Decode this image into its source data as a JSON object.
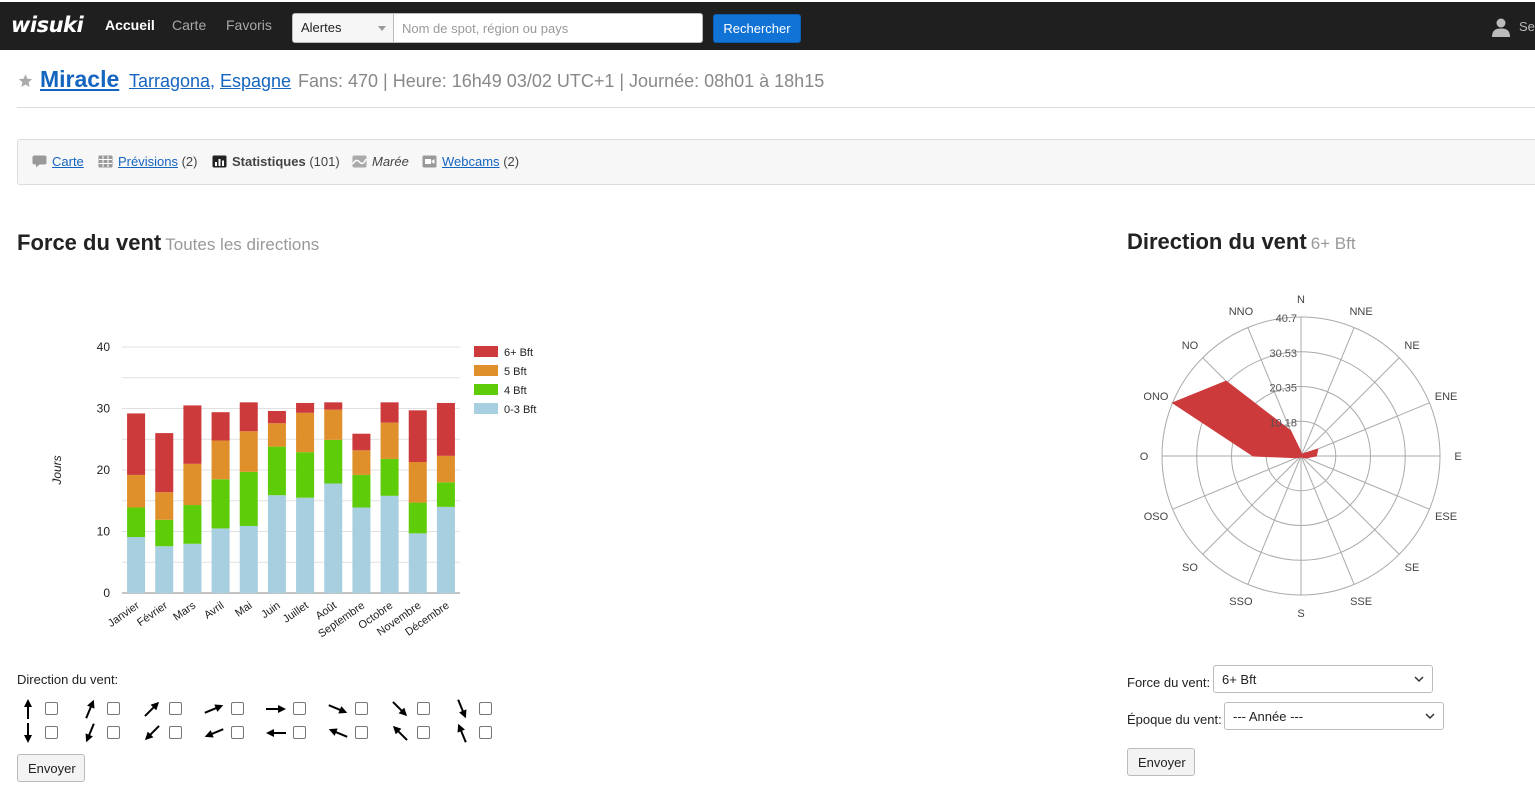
{
  "nav": {
    "logo": "wisuki",
    "items": [
      {
        "label": "Accueil",
        "active": true
      },
      {
        "label": "Carte",
        "active": false
      },
      {
        "label": "Favoris",
        "active": false
      }
    ],
    "alert_select": "Alertes",
    "search_placeholder": "Nom de spot, région ou pays",
    "search_button": "Rechercher",
    "user_label": "Se"
  },
  "spot": {
    "name": "Miracle",
    "region": "Tarragona",
    "separator": ",",
    "country": "Espagne",
    "info": "Fans: 470 | Heure: 16h49 03/02 UTC+1 | Journée: 08h01 à 18h15"
  },
  "tabs": [
    {
      "icon": "map-pin-icon",
      "label": "Carte",
      "count": "",
      "link": true,
      "bold": false
    },
    {
      "icon": "grid-icon",
      "label": "Prévisions",
      "count": "(2)",
      "link": true,
      "bold": false
    },
    {
      "icon": "bar-chart-icon",
      "label": "Statistiques",
      "count": "(101)",
      "link": false,
      "bold": true
    },
    {
      "icon": "wave-icon",
      "label": "Marée",
      "count": "",
      "link": false,
      "bold": false
    },
    {
      "icon": "webcam-icon",
      "label": "Webcams",
      "count": "(2)",
      "link": true,
      "bold": false
    }
  ],
  "force_section": {
    "title": "Force du vent",
    "subtitle": "Toutes les directions"
  },
  "direction_section": {
    "title": "Direction du vent",
    "subtitle": "6+ Bft"
  },
  "chart_data": [
    {
      "type": "bar",
      "stacked": true,
      "categories": [
        "Janvier",
        "Février",
        "Mars",
        "Avril",
        "Mai",
        "Juin",
        "Juillet",
        "Août",
        "Septembre",
        "Octobre",
        "Novembre",
        "Décembre"
      ],
      "ylabel": "Jours",
      "ylim": [
        0,
        40
      ],
      "yticks": [
        0,
        10,
        20,
        30,
        40
      ],
      "grid": true,
      "legend_position": "right",
      "series": [
        {
          "name": "0-3 Bft",
          "color": "#a8cfe0",
          "values": [
            9.1,
            7.6,
            8.0,
            10.5,
            10.9,
            15.9,
            15.5,
            17.8,
            13.9,
            15.8,
            9.7,
            14.0
          ]
        },
        {
          "name": "4 Bft",
          "color": "#5fcc0a",
          "values": [
            4.8,
            4.3,
            6.3,
            8.0,
            8.8,
            7.9,
            7.4,
            7.1,
            5.3,
            6.0,
            5.0,
            4.0
          ]
        },
        {
          "name": "5 Bft",
          "color": "#e0902a",
          "values": [
            5.3,
            4.5,
            6.7,
            6.3,
            6.6,
            3.8,
            6.4,
            4.9,
            4.0,
            5.9,
            6.6,
            4.3
          ]
        },
        {
          "name": "6+ Bft",
          "color": "#cc3a3c",
          "values": [
            10.0,
            9.6,
            9.5,
            4.6,
            4.7,
            2.0,
            1.6,
            1.2,
            2.7,
            3.3,
            8.4,
            8.6
          ]
        }
      ]
    },
    {
      "type": "radar",
      "series_name": "6+ Bft",
      "color": "#cc3a3c",
      "directions": [
        "N",
        "NNE",
        "NE",
        "ENE",
        "E",
        "ESE",
        "SE",
        "SSE",
        "S",
        "SSO",
        "SO",
        "OSO",
        "O",
        "ONO",
        "NO",
        "NNO"
      ],
      "values": [
        1.2,
        0.5,
        1.0,
        5.3,
        4.5,
        1.5,
        0.5,
        0.3,
        0.3,
        0.3,
        0.5,
        1.3,
        14.0,
        40.7,
        31.0,
        8.0
      ],
      "rmax": 40.7,
      "ring_labels": [
        "10.18",
        "20.35",
        "30.53",
        "40.7"
      ]
    }
  ],
  "direction_filter": {
    "label": "Direction du vent:",
    "top_row": [
      "N",
      "NNE",
      "NE",
      "ENE",
      "E",
      "ESE",
      "SE",
      "SSE"
    ],
    "bottom_row": [
      "S",
      "SSO",
      "SO",
      "OSO",
      "O",
      "ONO",
      "NO",
      "NNO"
    ],
    "submit": "Envoyer"
  },
  "direction_form": {
    "force_label": "Force du vent:",
    "force_value": "6+ Bft",
    "period_label": "Époque du vent:",
    "period_value": "--- Année ---",
    "submit": "Envoyer"
  }
}
